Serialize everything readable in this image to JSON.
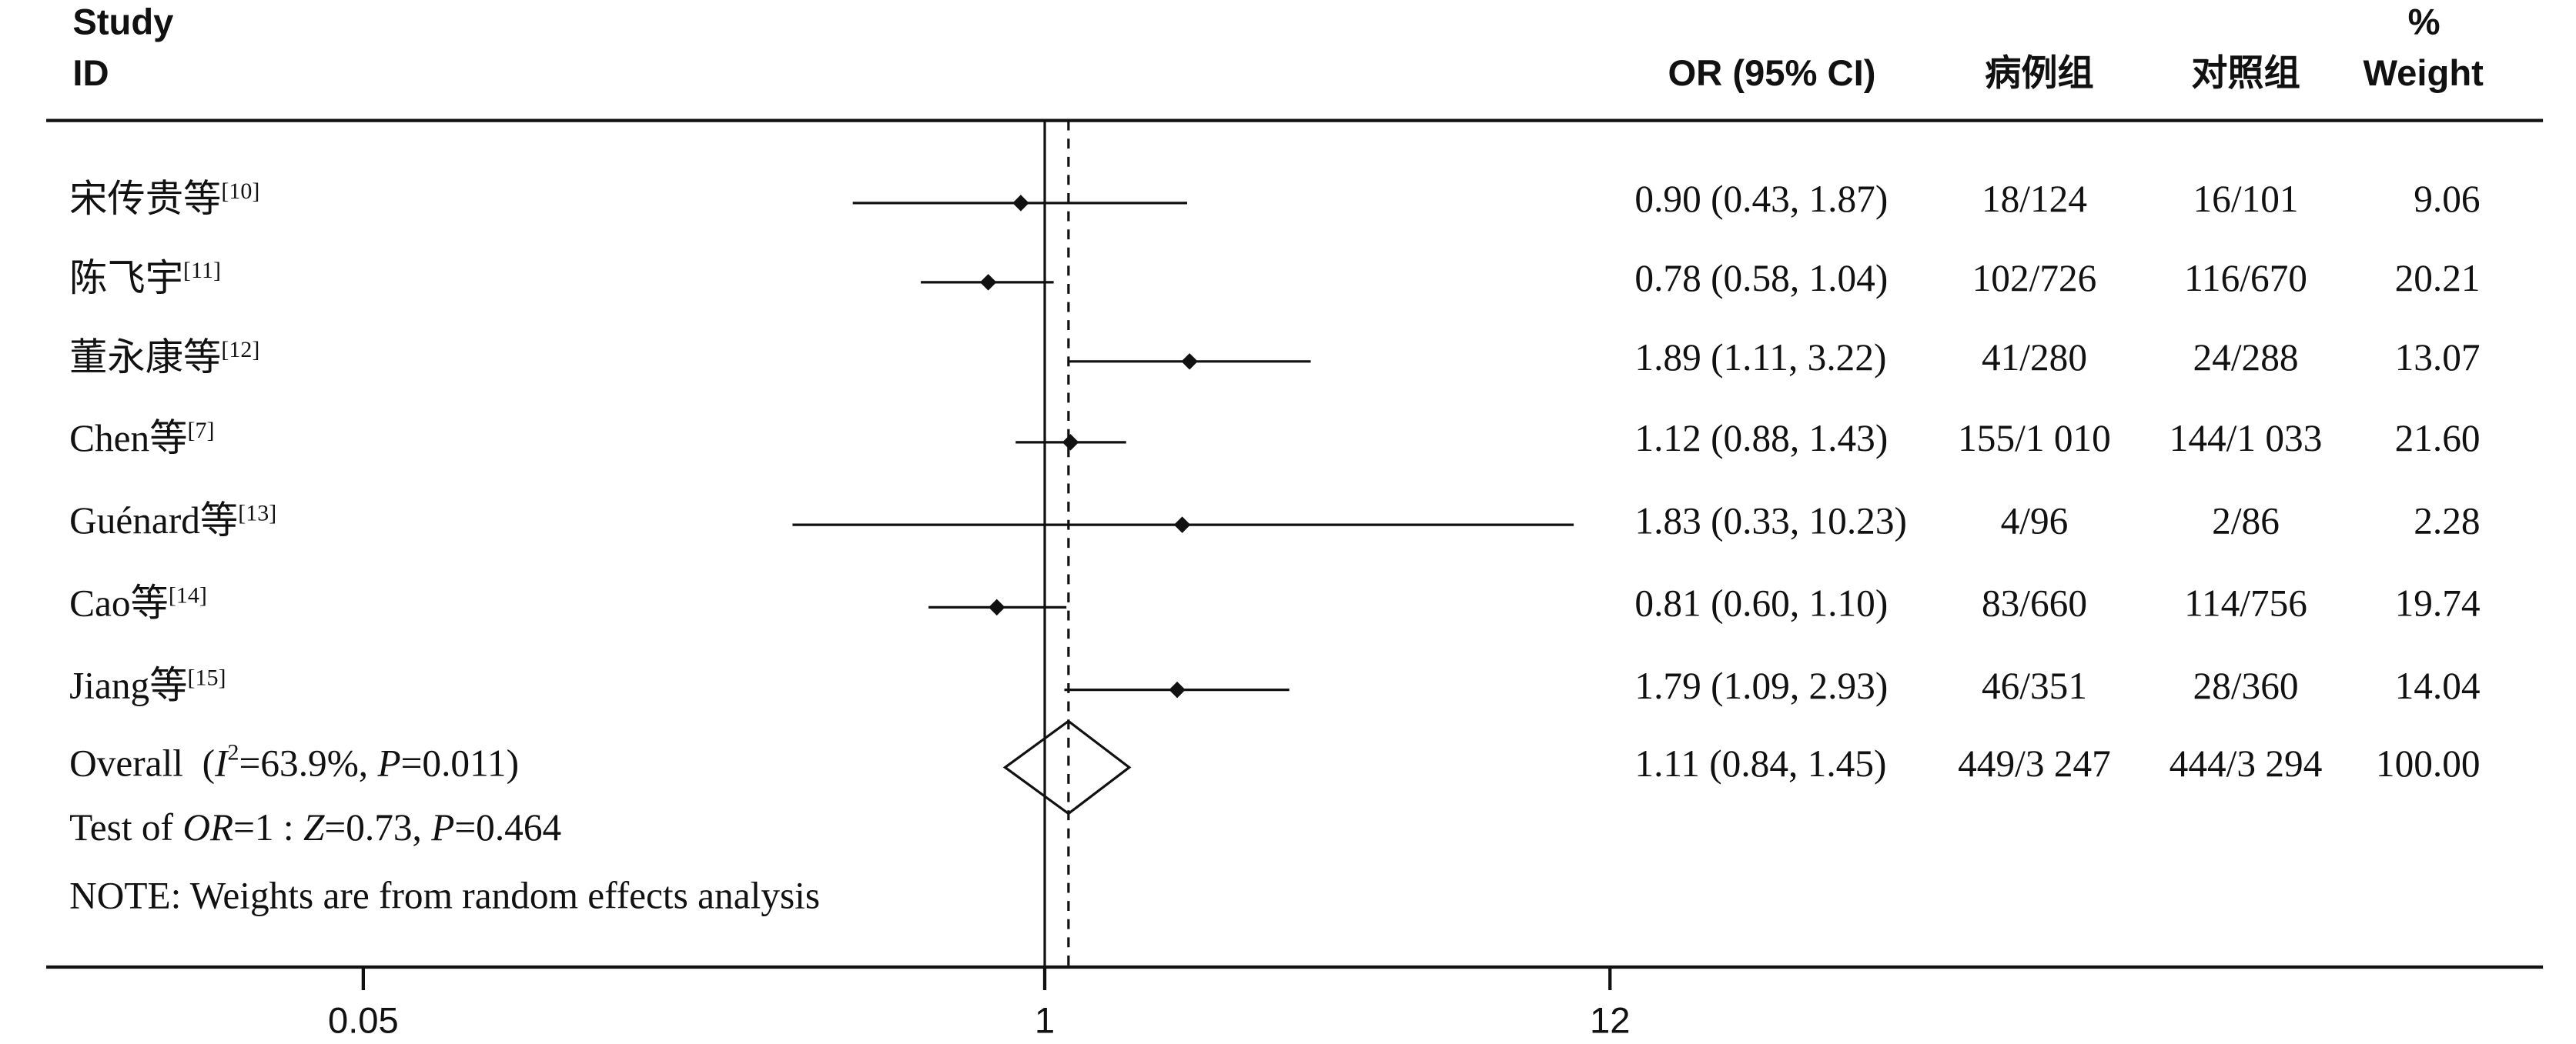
{
  "chart_data": {
    "type": "forest",
    "headers": {
      "study": [
        "Study",
        "ID"
      ],
      "or": "OR (95% CI)",
      "case": "病例组",
      "control": "对照组",
      "weight": [
        "%",
        "Weight"
      ]
    },
    "studies": [
      {
        "name": "宋传贵等",
        "ref": "[10]"
      },
      {
        "name": "陈飞宇",
        "ref": "[11]"
      },
      {
        "name": "董永康等",
        "ref": "[12]"
      },
      {
        "name": "Chen等",
        "ref": "[7]"
      },
      {
        "name": "Guénard等",
        "ref": "[13]"
      },
      {
        "name": "Cao等",
        "ref": "[14]"
      },
      {
        "name": "Jiang等",
        "ref": "[15]"
      }
    ],
    "or": [
      0.9,
      0.78,
      1.89,
      1.12,
      1.83,
      0.81,
      1.79
    ],
    "lo": [
      0.43,
      0.58,
      1.11,
      0.88,
      0.33,
      0.6,
      1.09
    ],
    "hi": [
      1.87,
      1.04,
      3.22,
      1.43,
      10.23,
      1.1,
      2.93
    ],
    "value_labels": [
      "0.90 (0.43, 1.87)",
      "0.78 (0.58, 1.04)",
      "1.89 (1.11, 3.22)",
      "1.12 (0.88, 1.43)",
      "1.83 (0.33, 10.23)",
      "0.81 (0.60, 1.10)",
      "1.79 (1.09, 2.93)"
    ],
    "case": [
      "18/124",
      "102/726",
      "41/280",
      "155/1 010",
      "4/96",
      "83/660",
      "46/351"
    ],
    "control": [
      "16/101",
      "116/670",
      "24/288",
      "144/1 033",
      "2/86",
      "114/756",
      "28/360"
    ],
    "weight": [
      "9.06",
      "20.21",
      "13.07",
      "21.60",
      "2.28",
      "19.74",
      "14.04"
    ],
    "overall": {
      "label": [
        {
          "text": "Overall  ("
        },
        {
          "text": "I",
          "style": "italic"
        },
        {
          "text": "2",
          "style": "sup"
        },
        {
          "text": "=63.9%, "
        },
        {
          "text": "P",
          "style": "italic"
        },
        {
          "text": "=0.011)"
        }
      ],
      "or": 1.11,
      "lo": 0.84,
      "hi": 1.45,
      "value_label": "1.11 (0.84, 1.45)",
      "case": "449/3 247",
      "control": "444/3 294",
      "weight": "100.00"
    },
    "test": [
      {
        "text": "Test of "
      },
      {
        "text": "OR",
        "style": "italic"
      },
      {
        "text": "=1 : "
      },
      {
        "text": "Z",
        "style": "italic"
      },
      {
        "text": "=0.73, "
      },
      {
        "text": "P",
        "style": "italic"
      },
      {
        "text": "=0.464"
      }
    ],
    "note": "NOTE: Weights are from random effects analysis",
    "xscale": "log",
    "null_line": 1,
    "xlim": [
      0.05,
      12
    ],
    "xticks": [
      0.05,
      1,
      12
    ]
  }
}
